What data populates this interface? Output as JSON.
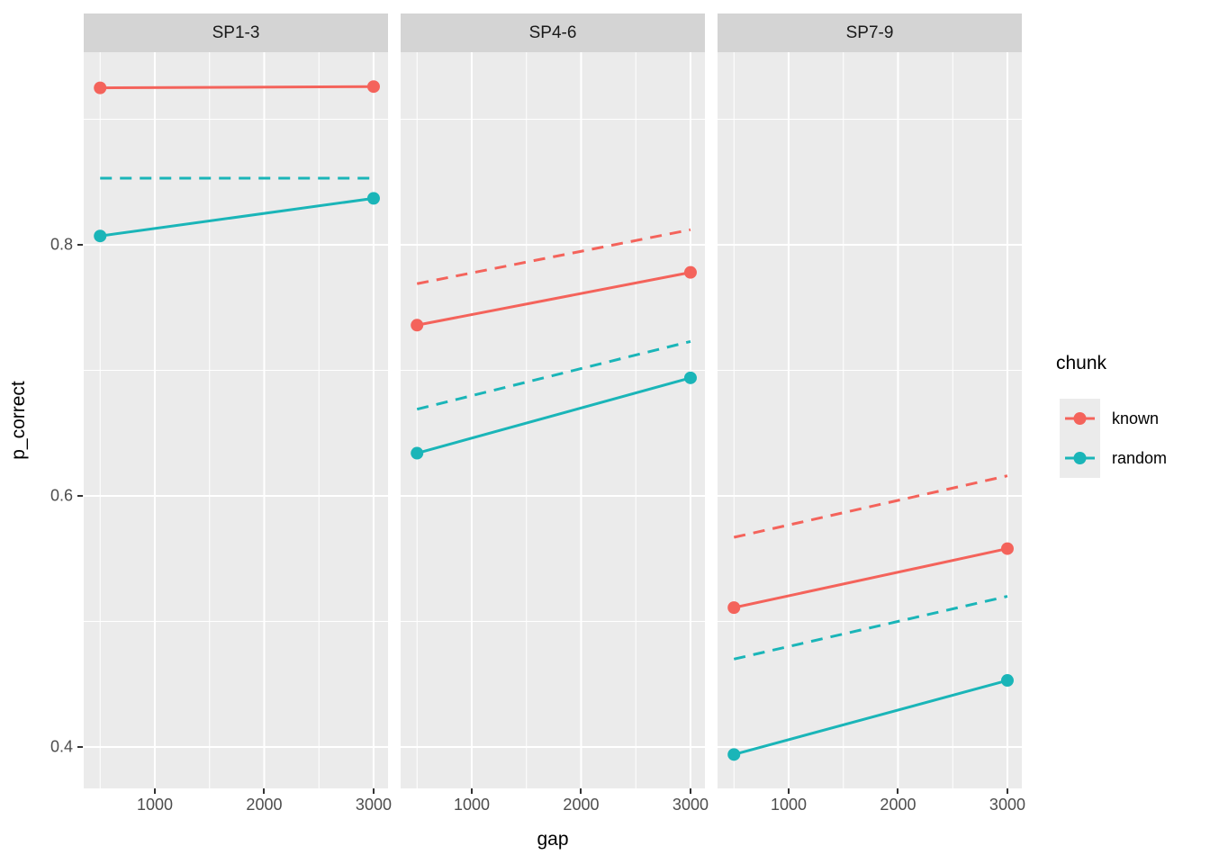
{
  "legend": {
    "title": "chunk",
    "entries": [
      {
        "label": "known",
        "color": "#F4635B"
      },
      {
        "label": "random",
        "color": "#1AB5B8"
      }
    ]
  },
  "colors": {
    "panel_background": "#EBEBEB",
    "strip_background": "#D4D4D4",
    "gridline": "#FFFFFF",
    "tick_label": "#4D4D4D",
    "tick_mark": "#333333",
    "axis_title": "#000000",
    "strip_text": "#1A1A1A",
    "known": "#F4635B",
    "random": "#1AB5B8"
  },
  "chart_data": {
    "type": "line",
    "title": "",
    "xlabel": "gap",
    "ylabel": "p_correct",
    "legend_title": "chunk",
    "legend_position": "right",
    "x": [
      500,
      3000
    ],
    "xlim": [
      350,
      3132
    ],
    "ylim": [
      0.367,
      0.9534
    ],
    "x_ticks": [
      {
        "label": "1000",
        "value": 1000
      },
      {
        "label": "2000",
        "value": 2000
      },
      {
        "label": "3000",
        "value": 3000
      }
    ],
    "y_ticks": [
      {
        "label": "0.8",
        "value": 0.8
      },
      {
        "label": "0.6",
        "value": 0.6
      },
      {
        "label": "0.4",
        "value": 0.4
      }
    ],
    "x_major_gridlines": [
      1000,
      2000,
      3000
    ],
    "x_minor_gridlines": [
      500,
      1500,
      2500
    ],
    "y_major_gridlines": [
      0.4,
      0.6,
      0.8
    ],
    "y_minor_gridlines": [
      0.5,
      0.7,
      0.9
    ],
    "series_colors": {
      "known": "#F4635B",
      "random": "#1AB5B8"
    },
    "facets": [
      {
        "label": "SP1-3",
        "series": [
          {
            "name": "random",
            "style": "dashed",
            "points": false,
            "values": [
              0.853,
              0.853
            ]
          },
          {
            "name": "known",
            "style": "solid",
            "points": true,
            "values": [
              0.925,
              0.926
            ]
          },
          {
            "name": "random",
            "style": "solid",
            "points": true,
            "values": [
              0.807,
              0.837
            ]
          }
        ]
      },
      {
        "label": "SP4-6",
        "series": [
          {
            "name": "known",
            "style": "dashed",
            "points": false,
            "values": [
              0.769,
              0.812
            ]
          },
          {
            "name": "random",
            "style": "dashed",
            "points": false,
            "values": [
              0.669,
              0.723
            ]
          },
          {
            "name": "known",
            "style": "solid",
            "points": true,
            "values": [
              0.736,
              0.778
            ]
          },
          {
            "name": "random",
            "style": "solid",
            "points": true,
            "values": [
              0.634,
              0.694
            ]
          }
        ]
      },
      {
        "label": "SP7-9",
        "series": [
          {
            "name": "known",
            "style": "dashed",
            "points": false,
            "values": [
              0.567,
              0.616
            ]
          },
          {
            "name": "random",
            "style": "dashed",
            "points": false,
            "values": [
              0.47,
              0.52
            ]
          },
          {
            "name": "known",
            "style": "solid",
            "points": true,
            "values": [
              0.511,
              0.558
            ]
          },
          {
            "name": "random",
            "style": "solid",
            "points": true,
            "values": [
              0.394,
              0.453
            ]
          }
        ]
      }
    ]
  }
}
